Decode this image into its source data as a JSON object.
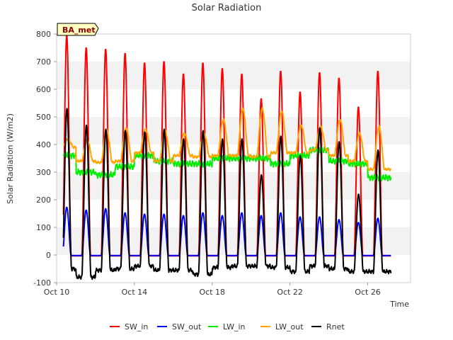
{
  "chart_data": {
    "type": "line",
    "title": "Solar Radiation",
    "xlabel": "Time",
    "ylabel": "Solar Radiation (W/m2)",
    "tag": "BA_met",
    "x_ticks": [
      "Oct 10",
      "Oct 14",
      "Oct 18",
      "Oct 22",
      "Oct 26"
    ],
    "x_tick_days": [
      10,
      14,
      18,
      22,
      26
    ],
    "xlim": [
      10,
      28.2
    ],
    "ylim": [
      -100,
      800
    ],
    "y_ticks": [
      -100,
      0,
      100,
      200,
      300,
      400,
      500,
      600,
      700,
      800
    ],
    "grid": "horizontal bands",
    "legend_position": "bottom",
    "days": [
      10,
      11,
      12,
      13,
      14,
      15,
      16,
      17,
      18,
      19,
      20,
      21,
      22,
      23,
      24,
      25,
      26
    ],
    "series": [
      {
        "name": "SW_in",
        "color": "#ff0000",
        "daily_peak": [
          800,
          755,
          750,
          735,
          700,
          705,
          660,
          700,
          680,
          660,
          570,
          670,
          595,
          665,
          645,
          540,
          670
        ]
      },
      {
        "name": "SW_out",
        "color": "#0000ff",
        "daily_peak": [
          175,
          165,
          170,
          155,
          150,
          150,
          145,
          155,
          145,
          155,
          145,
          155,
          140,
          140,
          130,
          120,
          135
        ]
      },
      {
        "name": "LW_in",
        "color": "#00ee00",
        "daily_mean": [
          360,
          300,
          290,
          320,
          360,
          340,
          330,
          330,
          350,
          350,
          350,
          330,
          360,
          380,
          340,
          330,
          280
        ]
      },
      {
        "name": "LW_out",
        "color": "#ffa500",
        "daily_peak": [
          420,
          415,
          450,
          460,
          455,
          450,
          440,
          440,
          490,
          530,
          530,
          520,
          470,
          465,
          490,
          440,
          465
        ],
        "daily_min": [
          390,
          340,
          335,
          340,
          370,
          340,
          360,
          355,
          360,
          360,
          355,
          370,
          370,
          380,
          360,
          340,
          310
        ]
      },
      {
        "name": "Rnet",
        "color": "#000000",
        "daily_peak": [
          530,
          470,
          455,
          450,
          445,
          455,
          420,
          450,
          420,
          420,
          290,
          430,
          360,
          460,
          410,
          220,
          380
        ],
        "night_min": [
          -50,
          -80,
          -55,
          -50,
          -40,
          -55,
          -55,
          -70,
          -45,
          -40,
          -40,
          -45,
          -60,
          -40,
          -50,
          -60,
          -60
        ]
      }
    ]
  }
}
